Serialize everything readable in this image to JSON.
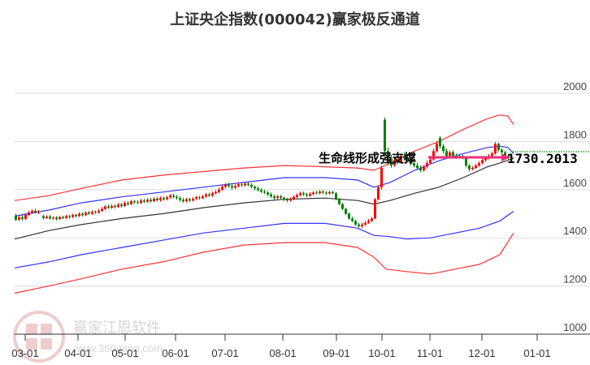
{
  "header": {
    "title": "上证央企指数(000042)赢家极反通道"
  },
  "watermark": {
    "logo_chars": [
      "江",
      "赢",
      "恩",
      "家"
    ],
    "name": "赢家江恩软件",
    "url": "www.360gann.com"
  },
  "annotation": {
    "text": "生命线形成强支撑",
    "last_value": "1730.2013"
  },
  "colors": {
    "up": "#ff0000",
    "down": "#008000",
    "outer_band": "#ff3333",
    "inner_band": "#3333ff",
    "lifeline": "#333333",
    "arrow": "#e8307a",
    "last_line": "#009900",
    "grid": "#dddddd"
  },
  "chart_data": {
    "type": "candlestick",
    "title": "上证央企指数(000042)赢家极反通道",
    "xlabel": "",
    "ylabel": "",
    "ylim": [
      1000,
      2000
    ],
    "y_ticks": [
      1000,
      1200,
      1400,
      1600,
      1800,
      2000
    ],
    "x_ticks": [
      "03-01",
      "04-01",
      "05-01",
      "06-01",
      "07-01",
      "08-01",
      "09-01",
      "10-01",
      "11-01",
      "12-01",
      "01-01"
    ],
    "grid": true,
    "last_close": 1730.2013,
    "series": [
      {
        "name": "upper_outer_band",
        "color": "#ff3333",
        "points": [
          [
            18,
            1555
          ],
          [
            60,
            1575
          ],
          [
            100,
            1605
          ],
          [
            150,
            1640
          ],
          [
            200,
            1660
          ],
          [
            250,
            1675
          ],
          [
            300,
            1690
          ],
          [
            350,
            1700
          ],
          [
            400,
            1695
          ],
          [
            440,
            1690
          ],
          [
            460,
            1680
          ],
          [
            480,
            1710
          ],
          [
            510,
            1760
          ],
          [
            540,
            1800
          ],
          [
            570,
            1850
          ],
          [
            600,
            1895
          ],
          [
            615,
            1910
          ],
          [
            625,
            1905
          ],
          [
            632,
            1870
          ]
        ]
      },
      {
        "name": "upper_inner_band",
        "color": "#3333ff",
        "points": [
          [
            18,
            1490
          ],
          [
            60,
            1515
          ],
          [
            100,
            1545
          ],
          [
            150,
            1570
          ],
          [
            200,
            1590
          ],
          [
            250,
            1610
          ],
          [
            300,
            1630
          ],
          [
            350,
            1650
          ],
          [
            400,
            1650
          ],
          [
            440,
            1640
          ],
          [
            460,
            1610
          ],
          [
            480,
            1630
          ],
          [
            510,
            1680
          ],
          [
            540,
            1720
          ],
          [
            570,
            1750
          ],
          [
            600,
            1775
          ],
          [
            615,
            1780
          ],
          [
            625,
            1775
          ],
          [
            632,
            1750
          ]
        ]
      },
      {
        "name": "lifeline",
        "color": "#333333",
        "points": [
          [
            18,
            1395
          ],
          [
            60,
            1430
          ],
          [
            100,
            1455
          ],
          [
            150,
            1480
          ],
          [
            200,
            1500
          ],
          [
            250,
            1525
          ],
          [
            300,
            1545
          ],
          [
            350,
            1560
          ],
          [
            400,
            1565
          ],
          [
            440,
            1555
          ],
          [
            460,
            1540
          ],
          [
            480,
            1555
          ],
          [
            510,
            1585
          ],
          [
            540,
            1610
          ],
          [
            570,
            1650
          ],
          [
            600,
            1695
          ],
          [
            615,
            1710
          ],
          [
            632,
            1730
          ]
        ]
      },
      {
        "name": "lower_inner_band",
        "color": "#3333ff",
        "points": [
          [
            18,
            1275
          ],
          [
            60,
            1300
          ],
          [
            100,
            1330
          ],
          [
            150,
            1360
          ],
          [
            200,
            1390
          ],
          [
            250,
            1420
          ],
          [
            300,
            1440
          ],
          [
            350,
            1460
          ],
          [
            400,
            1460
          ],
          [
            440,
            1440
          ],
          [
            460,
            1410
          ],
          [
            480,
            1405
          ],
          [
            500,
            1395
          ],
          [
            530,
            1400
          ],
          [
            560,
            1420
          ],
          [
            590,
            1440
          ],
          [
            615,
            1470
          ],
          [
            632,
            1510
          ]
        ]
      },
      {
        "name": "lower_outer_band",
        "color": "#ff3333",
        "points": [
          [
            18,
            1170
          ],
          [
            60,
            1200
          ],
          [
            100,
            1230
          ],
          [
            150,
            1270
          ],
          [
            200,
            1300
          ],
          [
            250,
            1340
          ],
          [
            300,
            1370
          ],
          [
            350,
            1380
          ],
          [
            400,
            1380
          ],
          [
            440,
            1360
          ],
          [
            460,
            1320
          ],
          [
            475,
            1270
          ],
          [
            500,
            1260
          ],
          [
            530,
            1250
          ],
          [
            560,
            1270
          ],
          [
            590,
            1290
          ],
          [
            615,
            1330
          ],
          [
            632,
            1420
          ]
        ]
      }
    ],
    "candles": [
      [
        18,
        1490,
        1475,
        1500,
        1470
      ],
      [
        22,
        1475,
        1485,
        1492,
        1470
      ],
      [
        26,
        1485,
        1478,
        1495,
        1472
      ],
      [
        30,
        1478,
        1495,
        1502,
        1474
      ],
      [
        34,
        1495,
        1505,
        1512,
        1490
      ],
      [
        38,
        1505,
        1512,
        1518,
        1500
      ],
      [
        42,
        1512,
        1505,
        1520,
        1500
      ],
      [
        46,
        1505,
        1510,
        1516,
        1498
      ],
      [
        52,
        1490,
        1482,
        1496,
        1476
      ],
      [
        56,
        1482,
        1488,
        1494,
        1478
      ],
      [
        60,
        1488,
        1480,
        1494,
        1476
      ],
      [
        64,
        1480,
        1484,
        1490,
        1475
      ],
      [
        68,
        1484,
        1478,
        1490,
        1472
      ],
      [
        72,
        1478,
        1486,
        1492,
        1474
      ],
      [
        76,
        1486,
        1482,
        1492,
        1478
      ],
      [
        80,
        1482,
        1490,
        1496,
        1478
      ],
      [
        84,
        1490,
        1486,
        1496,
        1480
      ],
      [
        88,
        1486,
        1495,
        1500,
        1482
      ],
      [
        92,
        1495,
        1490,
        1500,
        1484
      ],
      [
        96,
        1490,
        1500,
        1506,
        1486
      ],
      [
        100,
        1500,
        1494,
        1506,
        1488
      ],
      [
        104,
        1494,
        1505,
        1510,
        1490
      ],
      [
        108,
        1505,
        1500,
        1512,
        1496
      ],
      [
        112,
        1500,
        1508,
        1514,
        1495
      ],
      [
        116,
        1508,
        1505,
        1514,
        1500
      ],
      [
        120,
        1505,
        1512,
        1520,
        1500
      ],
      [
        124,
        1512,
        1520,
        1528,
        1508
      ],
      [
        128,
        1520,
        1530,
        1536,
        1515
      ],
      [
        132,
        1530,
        1525,
        1538,
        1520
      ],
      [
        136,
        1525,
        1532,
        1540,
        1520
      ],
      [
        140,
        1532,
        1528,
        1540,
        1522
      ],
      [
        144,
        1528,
        1538,
        1545,
        1524
      ],
      [
        148,
        1538,
        1532,
        1545,
        1526
      ],
      [
        152,
        1532,
        1545,
        1552,
        1528
      ],
      [
        156,
        1545,
        1540,
        1552,
        1534
      ],
      [
        160,
        1540,
        1552,
        1558,
        1536
      ],
      [
        164,
        1552,
        1548,
        1558,
        1542
      ],
      [
        168,
        1548,
        1545,
        1556,
        1540
      ],
      [
        172,
        1545,
        1555,
        1562,
        1540
      ],
      [
        176,
        1555,
        1550,
        1562,
        1544
      ],
      [
        180,
        1550,
        1558,
        1566,
        1544
      ],
      [
        184,
        1558,
        1552,
        1566,
        1546
      ],
      [
        188,
        1552,
        1562,
        1568,
        1548
      ],
      [
        192,
        1562,
        1556,
        1570,
        1550
      ],
      [
        196,
        1556,
        1565,
        1572,
        1550
      ],
      [
        200,
        1565,
        1560,
        1572,
        1554
      ],
      [
        204,
        1560,
        1568,
        1575,
        1555
      ],
      [
        208,
        1568,
        1575,
        1582,
        1562
      ],
      [
        212,
        1575,
        1570,
        1582,
        1564
      ],
      [
        216,
        1570,
        1565,
        1578,
        1558
      ],
      [
        220,
        1565,
        1558,
        1572,
        1550
      ],
      [
        224,
        1558,
        1552,
        1566,
        1546
      ],
      [
        228,
        1552,
        1560,
        1566,
        1546
      ],
      [
        232,
        1560,
        1555,
        1566,
        1548
      ],
      [
        236,
        1555,
        1562,
        1570,
        1550
      ],
      [
        240,
        1562,
        1568,
        1574,
        1556
      ],
      [
        244,
        1568,
        1565,
        1574,
        1558
      ],
      [
        248,
        1565,
        1572,
        1578,
        1560
      ],
      [
        252,
        1572,
        1580,
        1586,
        1566
      ],
      [
        256,
        1580,
        1575,
        1588,
        1570
      ],
      [
        260,
        1575,
        1585,
        1592,
        1570
      ],
      [
        264,
        1585,
        1590,
        1598,
        1580
      ],
      [
        268,
        1590,
        1600,
        1608,
        1585
      ],
      [
        272,
        1600,
        1612,
        1620,
        1595
      ],
      [
        276,
        1612,
        1620,
        1626,
        1605
      ],
      [
        280,
        1620,
        1615,
        1628,
        1608
      ],
      [
        284,
        1615,
        1608,
        1622,
        1600
      ],
      [
        288,
        1608,
        1615,
        1622,
        1602
      ],
      [
        292,
        1615,
        1622,
        1628,
        1610
      ],
      [
        296,
        1622,
        1618,
        1630,
        1612
      ],
      [
        300,
        1618,
        1625,
        1632,
        1612
      ],
      [
        304,
        1625,
        1620,
        1632,
        1614
      ],
      [
        308,
        1620,
        1612,
        1626,
        1605
      ],
      [
        312,
        1612,
        1605,
        1618,
        1598
      ],
      [
        316,
        1605,
        1598,
        1612,
        1592
      ],
      [
        320,
        1598,
        1592,
        1606,
        1586
      ],
      [
        324,
        1592,
        1588,
        1600,
        1582
      ],
      [
        328,
        1588,
        1580,
        1594,
        1572
      ],
      [
        332,
        1580,
        1572,
        1588,
        1566
      ],
      [
        336,
        1572,
        1565,
        1580,
        1558
      ],
      [
        340,
        1565,
        1572,
        1578,
        1560
      ],
      [
        344,
        1572,
        1566,
        1578,
        1560
      ],
      [
        348,
        1566,
        1560,
        1572,
        1552
      ],
      [
        352,
        1560,
        1555,
        1566,
        1548
      ],
      [
        356,
        1555,
        1562,
        1568,
        1550
      ],
      [
        360,
        1562,
        1570,
        1576,
        1556
      ],
      [
        364,
        1570,
        1578,
        1585,
        1565
      ],
      [
        368,
        1578,
        1585,
        1592,
        1572
      ],
      [
        372,
        1585,
        1580,
        1592,
        1574
      ],
      [
        376,
        1580,
        1575,
        1588,
        1570
      ],
      [
        380,
        1575,
        1582,
        1590,
        1570
      ],
      [
        384,
        1582,
        1588,
        1594,
        1576
      ],
      [
        388,
        1588,
        1585,
        1596,
        1580
      ],
      [
        392,
        1585,
        1592,
        1598,
        1580
      ],
      [
        396,
        1592,
        1588,
        1598,
        1582
      ],
      [
        400,
        1588,
        1584,
        1594,
        1578
      ],
      [
        404,
        1584,
        1590,
        1596,
        1578
      ],
      [
        408,
        1590,
        1585,
        1596,
        1580
      ],
      [
        412,
        1585,
        1560,
        1590,
        1555
      ],
      [
        416,
        1560,
        1540,
        1565,
        1535
      ],
      [
        420,
        1540,
        1520,
        1545,
        1515
      ],
      [
        424,
        1520,
        1500,
        1525,
        1495
      ],
      [
        428,
        1500,
        1480,
        1505,
        1475
      ],
      [
        432,
        1480,
        1470,
        1488,
        1465
      ],
      [
        436,
        1470,
        1455,
        1475,
        1450
      ],
      [
        440,
        1455,
        1448,
        1462,
        1442
      ],
      [
        444,
        1448,
        1455,
        1462,
        1442
      ],
      [
        448,
        1455,
        1462,
        1470,
        1450
      ],
      [
        452,
        1462,
        1470,
        1478,
        1458
      ],
      [
        456,
        1470,
        1480,
        1486,
        1465
      ],
      [
        460,
        1480,
        1560,
        1565,
        1478
      ],
      [
        464,
        1560,
        1610,
        1618,
        1555
      ],
      [
        468,
        1610,
        1690,
        1700,
        1600
      ],
      [
        472,
        1890,
        1760,
        1900,
        1740
      ],
      [
        476,
        1760,
        1730,
        1775,
        1700
      ],
      [
        480,
        1730,
        1700,
        1745,
        1690
      ],
      [
        484,
        1700,
        1725,
        1735,
        1695
      ],
      [
        488,
        1725,
        1715,
        1740,
        1705
      ],
      [
        492,
        1715,
        1740,
        1750,
        1710
      ],
      [
        496,
        1740,
        1730,
        1755,
        1720
      ],
      [
        500,
        1730,
        1720,
        1745,
        1712
      ],
      [
        504,
        1720,
        1710,
        1732,
        1700
      ],
      [
        508,
        1710,
        1700,
        1725,
        1692
      ],
      [
        512,
        1700,
        1690,
        1712,
        1680
      ],
      [
        516,
        1690,
        1680,
        1700,
        1672
      ],
      [
        520,
        1680,
        1695,
        1702,
        1675
      ],
      [
        524,
        1695,
        1710,
        1720,
        1688
      ],
      [
        528,
        1710,
        1725,
        1740,
        1705
      ],
      [
        532,
        1725,
        1760,
        1770,
        1720
      ],
      [
        536,
        1760,
        1790,
        1800,
        1755
      ],
      [
        540,
        1815,
        1780,
        1822,
        1770
      ],
      [
        544,
        1780,
        1760,
        1790,
        1750
      ],
      [
        548,
        1760,
        1740,
        1770,
        1735
      ],
      [
        552,
        1740,
        1755,
        1762,
        1735
      ],
      [
        556,
        1755,
        1740,
        1764,
        1732
      ],
      [
        560,
        1740,
        1735,
        1750,
        1728
      ],
      [
        564,
        1735,
        1740,
        1748,
        1730
      ],
      [
        568,
        1740,
        1732,
        1746,
        1726
      ],
      [
        572,
        1732,
        1700,
        1736,
        1692
      ],
      [
        576,
        1700,
        1685,
        1705,
        1675
      ],
      [
        580,
        1685,
        1690,
        1698,
        1680
      ],
      [
        584,
        1690,
        1700,
        1708,
        1685
      ],
      [
        588,
        1700,
        1710,
        1718,
        1695
      ],
      [
        592,
        1710,
        1722,
        1728,
        1705
      ],
      [
        596,
        1722,
        1730,
        1736,
        1716
      ],
      [
        600,
        1730,
        1740,
        1748,
        1725
      ],
      [
        604,
        1740,
        1750,
        1758,
        1735
      ],
      [
        608,
        1750,
        1790,
        1798,
        1745
      ],
      [
        612,
        1790,
        1765,
        1795,
        1758
      ],
      [
        616,
        1765,
        1755,
        1772,
        1748
      ],
      [
        620,
        1755,
        1740,
        1762,
        1735
      ],
      [
        624,
        1740,
        1730,
        1748,
        1722
      ],
      [
        628,
        1730,
        1735,
        1742,
        1725
      ]
    ]
  }
}
